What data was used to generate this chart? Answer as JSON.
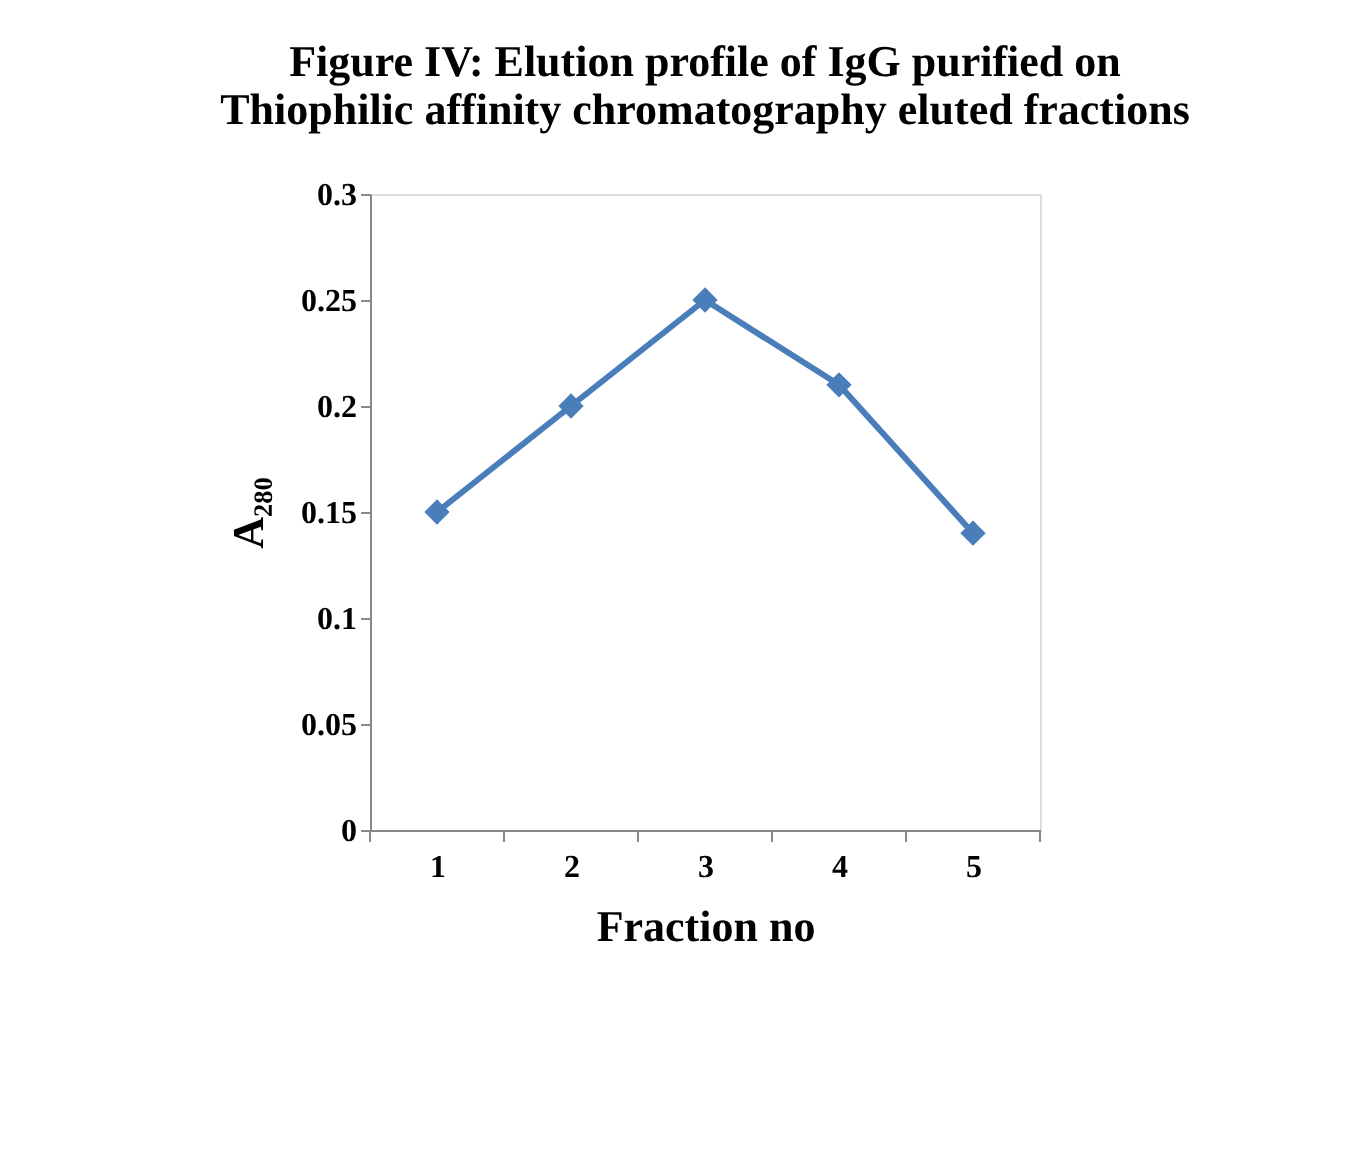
{
  "chart_data": {
    "type": "line",
    "title": [
      "Figure IV: Elution profile of IgG purified on",
      "Thiophilic affinity chromatography eluted fractions"
    ],
    "xlabel": "Fraction no",
    "ylabel": "A₂₈₀",
    "categories": [
      "1",
      "2",
      "3",
      "4",
      "5"
    ],
    "series": [
      {
        "color": "#4a7ebb",
        "values": [
          0.15,
          0.2,
          0.25,
          0.21,
          0.14
        ]
      }
    ],
    "ylim": [
      0,
      0.3
    ],
    "yticks": [
      0,
      0.05,
      0.1,
      0.15,
      0.2,
      0.25,
      0.3
    ],
    "grid": false,
    "legend": false,
    "marker": "diamond",
    "line_style": "solid"
  }
}
